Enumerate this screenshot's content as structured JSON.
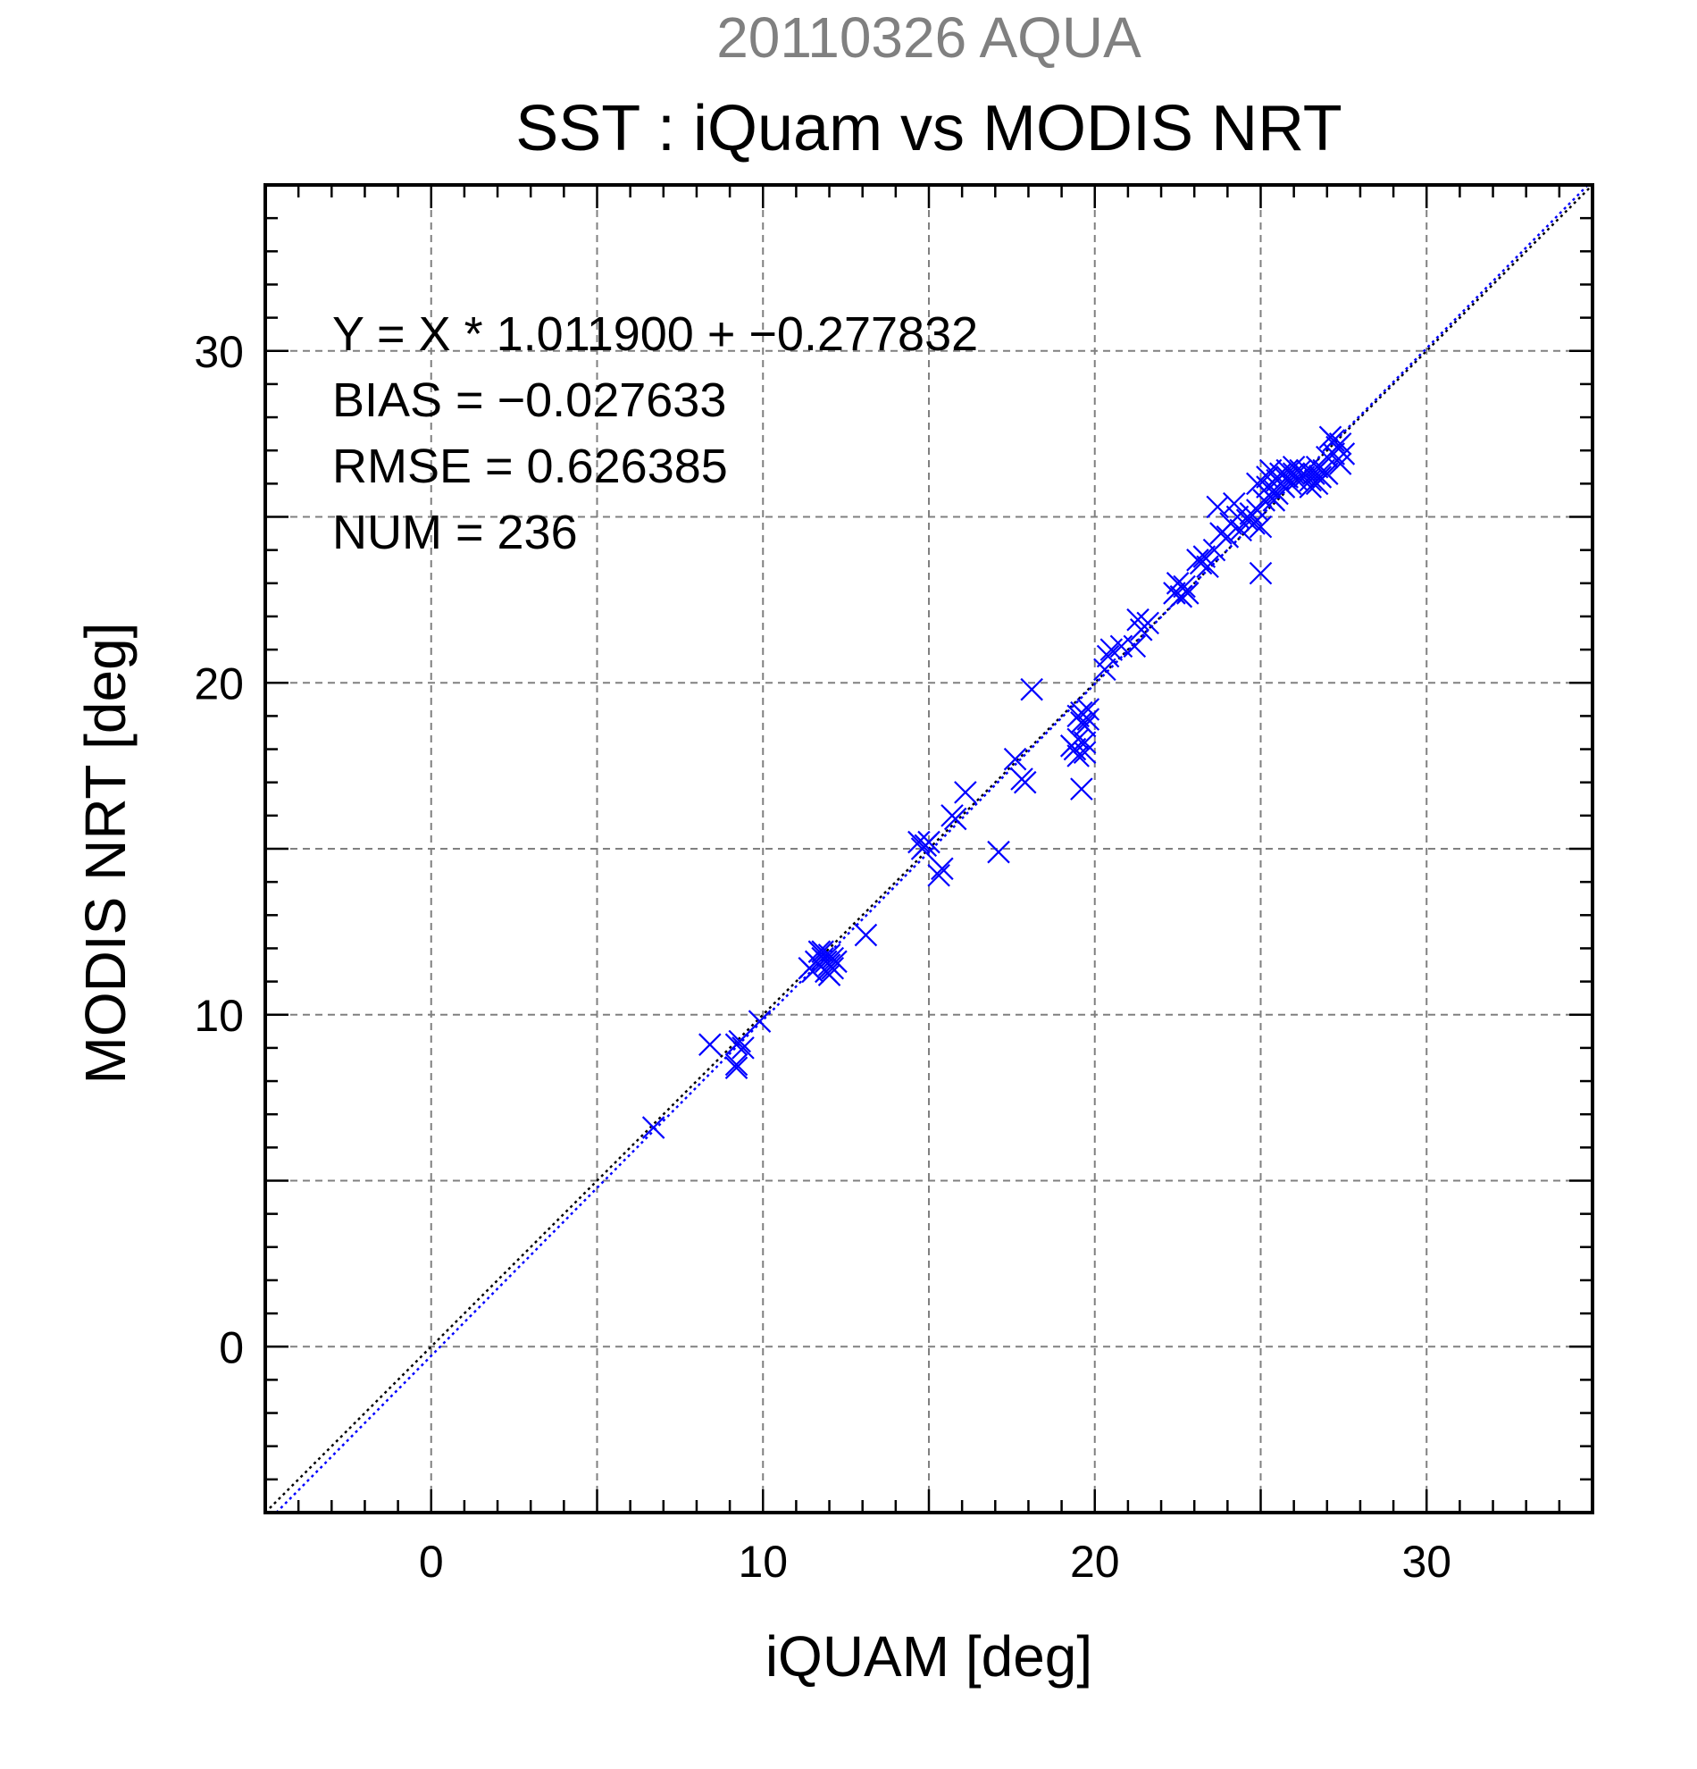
{
  "chart_data": {
    "type": "scatter",
    "suptitle": "20110326 AQUA",
    "title": "SST : iQuam vs MODIS NRT",
    "xlabel": "iQUAM [deg]",
    "ylabel": "MODIS NRT [deg]",
    "xlim": [
      -5,
      35
    ],
    "ylim": [
      -5,
      35
    ],
    "xticks": [
      0,
      10,
      20,
      30
    ],
    "yticks": [
      0,
      10,
      20,
      30
    ],
    "grid_step": 5,
    "minor_tick_step": 1,
    "grid": true,
    "marker": "x",
    "marker_color": "#0000ff",
    "annotations": [
      "Y = X * 1.011900 + −0.277832",
      "BIAS = −0.027633",
      "RMSE = 0.626385",
      "NUM = 236"
    ],
    "lines": [
      {
        "kind": "identity",
        "slope": 1.0,
        "intercept": 0.0,
        "color": "#000000",
        "style": "dotted"
      },
      {
        "kind": "regression",
        "slope": 1.0119,
        "intercept": -0.277832,
        "color": "#0000ff",
        "style": "dotted"
      }
    ],
    "points": [
      [
        6.7,
        6.6
      ],
      [
        8.4,
        9.1
      ],
      [
        9.2,
        8.5
      ],
      [
        9.2,
        8.4
      ],
      [
        9.2,
        9.1
      ],
      [
        9.3,
        9.2
      ],
      [
        9.4,
        9.0
      ],
      [
        9.9,
        9.8
      ],
      [
        11.4,
        11.4
      ],
      [
        11.5,
        11.3
      ],
      [
        11.6,
        11.6
      ],
      [
        11.7,
        11.5
      ],
      [
        11.8,
        11.7
      ],
      [
        11.8,
        11.9
      ],
      [
        11.9,
        11.3
      ],
      [
        11.9,
        11.6
      ],
      [
        12.0,
        11.8
      ],
      [
        12.0,
        11.5
      ],
      [
        12.1,
        11.7
      ],
      [
        12.1,
        11.4
      ],
      [
        12.2,
        11.6
      ],
      [
        12.0,
        11.2
      ],
      [
        11.7,
        11.9
      ],
      [
        13.1,
        12.4
      ],
      [
        14.7,
        15.2
      ],
      [
        14.8,
        15.0
      ],
      [
        14.9,
        15.1
      ],
      [
        15.0,
        15.2
      ],
      [
        15.3,
        14.2
      ],
      [
        15.4,
        14.4
      ],
      [
        15.7,
        16.0
      ],
      [
        15.8,
        15.9
      ],
      [
        16.1,
        16.7
      ],
      [
        17.1,
        14.9
      ],
      [
        17.6,
        17.7
      ],
      [
        17.8,
        17.1
      ],
      [
        17.9,
        17.0
      ],
      [
        18.1,
        19.8
      ],
      [
        19.3,
        18.1
      ],
      [
        19.4,
        18.0
      ],
      [
        19.5,
        18.3
      ],
      [
        19.5,
        19.0
      ],
      [
        19.6,
        18.8
      ],
      [
        19.6,
        19.1
      ],
      [
        19.7,
        18.7
      ],
      [
        19.7,
        18.2
      ],
      [
        19.7,
        17.9
      ],
      [
        19.8,
        18.9
      ],
      [
        19.8,
        19.2
      ],
      [
        19.6,
        16.8
      ],
      [
        19.5,
        17.8
      ],
      [
        20.3,
        20.4
      ],
      [
        20.4,
        20.8
      ],
      [
        20.5,
        21.0
      ],
      [
        20.8,
        21.1
      ],
      [
        21.2,
        21.1
      ],
      [
        21.3,
        21.9
      ],
      [
        21.4,
        21.6
      ],
      [
        21.6,
        21.8
      ],
      [
        22.4,
        22.7
      ],
      [
        22.5,
        23.0
      ],
      [
        22.6,
        22.6
      ],
      [
        22.7,
        22.9
      ],
      [
        22.8,
        22.7
      ],
      [
        23.1,
        23.7
      ],
      [
        23.2,
        23.6
      ],
      [
        23.4,
        23.5
      ],
      [
        23.3,
        23.8
      ],
      [
        23.6,
        24.0
      ],
      [
        23.7,
        25.3
      ],
      [
        23.8,
        24.5
      ],
      [
        24.0,
        24.4
      ],
      [
        24.1,
        24.8
      ],
      [
        24.2,
        25.4
      ],
      [
        24.3,
        25.0
      ],
      [
        24.4,
        24.6
      ],
      [
        24.6,
        24.9
      ],
      [
        24.7,
        25.1
      ],
      [
        24.8,
        24.8
      ],
      [
        24.9,
        26.0
      ],
      [
        24.9,
        25.2
      ],
      [
        25.0,
        24.7
      ],
      [
        25.0,
        23.3
      ],
      [
        25.1,
        25.5
      ],
      [
        25.2,
        25.9
      ],
      [
        25.2,
        26.2
      ],
      [
        25.3,
        25.6
      ],
      [
        25.3,
        26.4
      ],
      [
        25.4,
        25.8
      ],
      [
        25.4,
        25.5
      ],
      [
        25.5,
        26.1
      ],
      [
        25.5,
        25.7
      ],
      [
        25.6,
        26.0
      ],
      [
        25.6,
        26.3
      ],
      [
        25.7,
        25.9
      ],
      [
        25.8,
        26.2
      ],
      [
        25.8,
        26.4
      ],
      [
        25.9,
        26.0
      ],
      [
        26.0,
        26.3
      ],
      [
        26.0,
        26.5
      ],
      [
        26.1,
        26.1
      ],
      [
        26.2,
        26.4
      ],
      [
        26.3,
        26.2
      ],
      [
        26.4,
        26.4
      ],
      [
        26.5,
        26.1
      ],
      [
        26.5,
        25.9
      ],
      [
        26.6,
        26.3
      ],
      [
        26.7,
        26.5
      ],
      [
        26.7,
        26.0
      ],
      [
        26.8,
        26.2
      ],
      [
        26.9,
        26.4
      ],
      [
        27.0,
        26.3
      ],
      [
        27.0,
        26.8
      ],
      [
        27.1,
        27.4
      ],
      [
        27.2,
        27.3
      ],
      [
        27.2,
        26.9
      ],
      [
        27.3,
        27.1
      ],
      [
        27.4,
        27.2
      ],
      [
        27.4,
        26.6
      ],
      [
        27.5,
        26.9
      ]
    ]
  }
}
